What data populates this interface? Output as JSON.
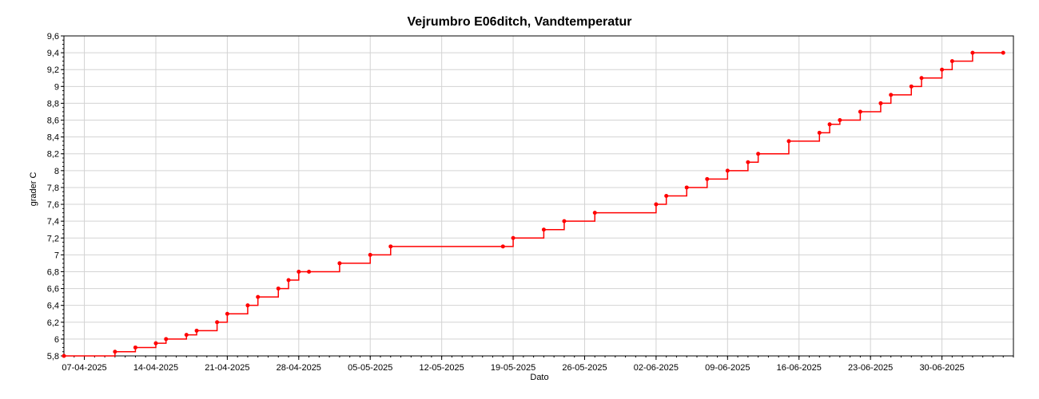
{
  "chart_data": {
    "type": "line",
    "title": "Vejrumbro E06ditch, Vandtemperatur",
    "xlabel": "Dato",
    "ylabel": "grader C",
    "ylim": [
      5.8,
      9.6
    ],
    "xlim": [
      "2025-04-05",
      "2025-07-07"
    ],
    "y_ticks": [
      "5,8",
      "6",
      "6,2",
      "6,4",
      "6,6",
      "6,8",
      "7",
      "7,2",
      "7,4",
      "7,6",
      "7,8",
      "8",
      "8,2",
      "8,4",
      "8,6",
      "8,8",
      "9",
      "9,2",
      "9,4",
      "9,6"
    ],
    "x_ticks": [
      "07-04-2025",
      "14-04-2025",
      "21-04-2025",
      "28-04-2025",
      "05-05-2025",
      "12-05-2025",
      "19-05-2025",
      "26-05-2025",
      "02-06-2025",
      "09-06-2025",
      "16-06-2025",
      "23-06-2025",
      "30-06-2025"
    ],
    "grid": true,
    "colors": {
      "series": "#ff0000",
      "grid": "#d3d3d3",
      "axis": "#000000"
    },
    "series": [
      {
        "x": [
          "2025-04-05",
          "2025-04-10",
          "2025-04-12",
          "2025-04-14",
          "2025-04-15",
          "2025-04-17",
          "2025-04-18",
          "2025-04-20",
          "2025-04-21",
          "2025-04-23",
          "2025-04-24",
          "2025-04-26",
          "2025-04-27",
          "2025-04-28",
          "2025-04-29",
          "2025-05-02",
          "2025-05-05",
          "2025-05-07",
          "2025-05-18",
          "2025-05-19",
          "2025-05-22",
          "2025-05-24",
          "2025-05-27",
          "2025-06-02",
          "2025-06-03",
          "2025-06-05",
          "2025-06-07",
          "2025-06-09",
          "2025-06-11",
          "2025-06-12",
          "2025-06-15",
          "2025-06-18",
          "2025-06-19",
          "2025-06-20",
          "2025-06-22",
          "2025-06-24",
          "2025-06-25",
          "2025-06-27",
          "2025-06-28",
          "2025-06-30",
          "2025-07-01",
          "2025-07-03",
          "2025-07-06"
        ],
        "y": [
          5.8,
          5.85,
          5.9,
          5.95,
          6.0,
          6.05,
          6.1,
          6.2,
          6.3,
          6.4,
          6.5,
          6.6,
          6.7,
          6.8,
          6.8,
          6.9,
          7.0,
          7.1,
          7.1,
          7.2,
          7.3,
          7.4,
          7.5,
          7.6,
          7.7,
          7.8,
          7.9,
          8.0,
          8.1,
          8.2,
          8.35,
          8.45,
          8.55,
          8.6,
          8.7,
          8.8,
          8.9,
          9.0,
          9.1,
          9.2,
          9.3,
          9.4,
          9.4
        ]
      }
    ]
  }
}
